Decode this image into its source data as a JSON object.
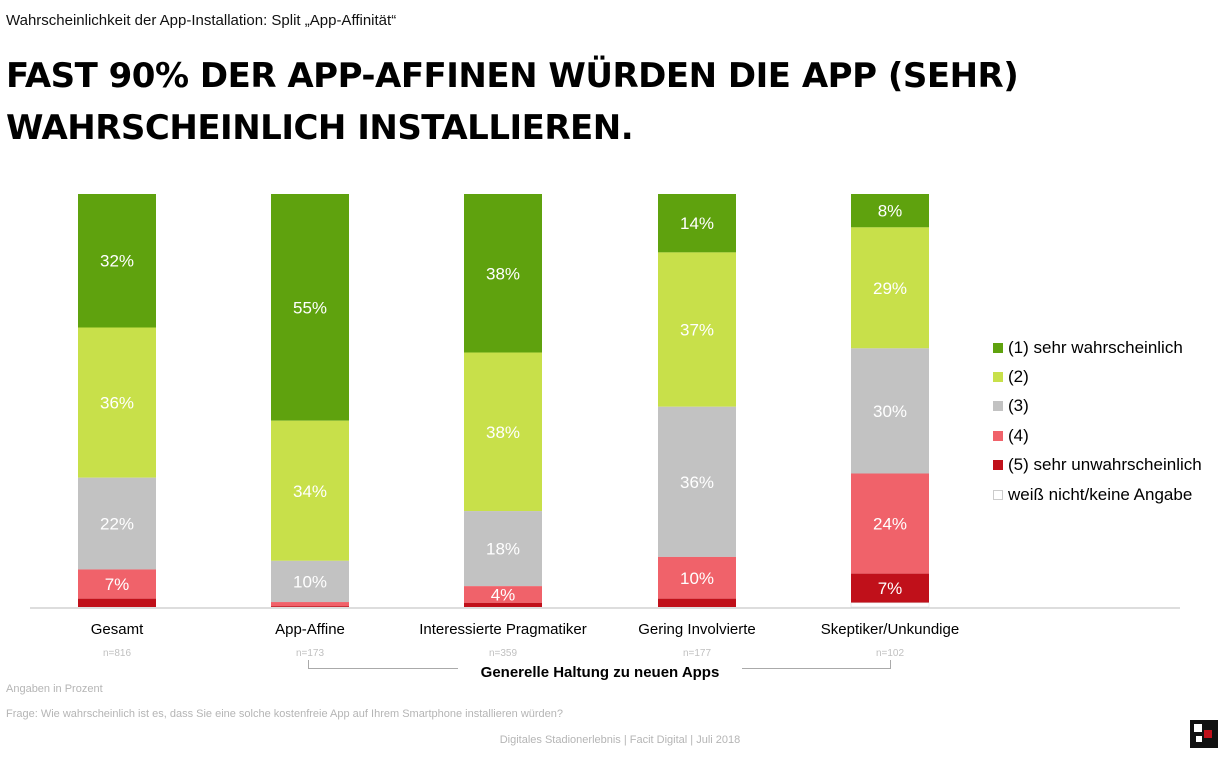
{
  "subtitle": "Wahrscheinlichkeit der App-Installation: Split „App-Affinität“",
  "title_line1": "FAST 90% DER APP-AFFINEN WÜRDEN DIE APP (SEHR)",
  "title_line2": "WAHRSCHEINLICH INSTALLIEREN.",
  "group_label": "Generelle Haltung zu neuen Apps",
  "note_units": "Angaben in Prozent",
  "note_question": "Frage: Wie wahrscheinlich ist es, dass Sie eine solche kostenfreie App auf Ihrem Smartphone installieren würden?",
  "footer": "Digitales Stadionerlebnis | Facit Digital | Juli 2018",
  "chart_data": {
    "type": "bar",
    "stacked": true,
    "categories": [
      "Gesamt",
      "App-Affine",
      "Interessierte Pragmatiker",
      "Gering Involvierte",
      "Skeptiker/Unkundige"
    ],
    "sample_sizes": [
      "n=816",
      "n=173",
      "n=359",
      "n=177",
      "n=102"
    ],
    "series": [
      {
        "name": "(1) sehr wahrscheinlich",
        "color": "#5fa20e",
        "values": [
          32,
          55,
          38,
          14,
          8
        ],
        "labels": [
          "32%",
          "55%",
          "38%",
          "14%",
          "8%"
        ]
      },
      {
        "name": "(2)",
        "color": "#c8e04a",
        "values": [
          36,
          34,
          38,
          37,
          29
        ],
        "labels": [
          "36%",
          "34%",
          "38%",
          "37%",
          "29%"
        ]
      },
      {
        "name": "(3)",
        "color": "#c2c2c2",
        "values": [
          22,
          10,
          18,
          36,
          30
        ],
        "labels": [
          "22%",
          "10%",
          "18%",
          "36%",
          "30%"
        ]
      },
      {
        "name": "(4)",
        "color": "#f0626a",
        "values": [
          7,
          1,
          4,
          10,
          24
        ],
        "labels": [
          "7%",
          "",
          "4%",
          "10%",
          "24%"
        ]
      },
      {
        "name": "(5) sehr unwahrscheinlich",
        "color": "#c0101a",
        "values": [
          2,
          0.2,
          1,
          2,
          7
        ],
        "labels": [
          "",
          "",
          "",
          "",
          "7%"
        ]
      },
      {
        "name": "weiß nicht/keine Angabe",
        "color": "#ffffff",
        "values": [
          0,
          0,
          0,
          0,
          1
        ],
        "labels": [
          "",
          "",
          "",
          "",
          ""
        ]
      }
    ],
    "ylim": [
      0,
      100
    ],
    "xlabel": "Generelle Haltung zu neuen Apps",
    "ylabel": "",
    "legend_position": "right"
  }
}
